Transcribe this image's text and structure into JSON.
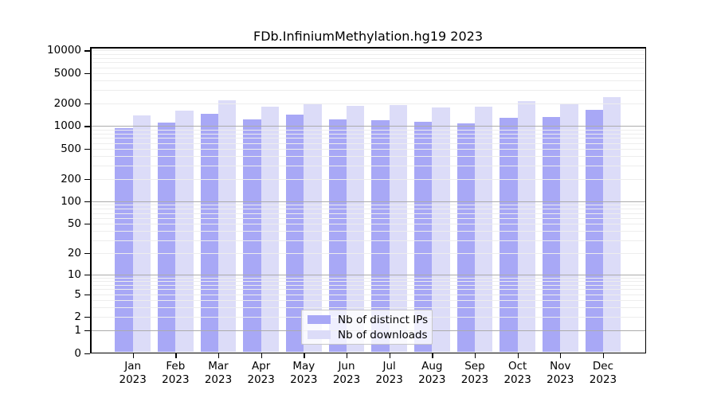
{
  "title": "FDb.InfiniumMethylation.hg19 2023",
  "colors": {
    "bar_dark": "#a8a8f6",
    "bar_light": "#dcdcf8",
    "grid_major": "#ababab",
    "grid_minor": "#ededed",
    "axis": "#000000",
    "legend_border": "#c8c8c8"
  },
  "chart_data": {
    "type": "bar",
    "title": "FDb.InfiniumMethylation.hg19 2023",
    "xlabel": "",
    "ylabel": "",
    "yscale": "log1p",
    "ylim": [
      0,
      11000
    ],
    "grid": true,
    "legend_position": "inside-bottom-center",
    "y_ticks": [
      0,
      1,
      2,
      5,
      10,
      20,
      50,
      100,
      200,
      500,
      1000,
      2000,
      5000,
      10000
    ],
    "categories": [
      "Jan 2023",
      "Feb 2023",
      "Mar 2023",
      "Apr 2023",
      "May 2023",
      "Jun 2023",
      "Jul 2023",
      "Aug 2023",
      "Sep 2023",
      "Oct 2023",
      "Nov 2023",
      "Dec 2023"
    ],
    "series": [
      {
        "name": "Nb of distinct IPs",
        "color": "#a8a8f6",
        "values": [
          940,
          1110,
          1440,
          1240,
          1420,
          1240,
          1200,
          1150,
          1080,
          1280,
          1320,
          1650
        ]
      },
      {
        "name": "Nb of downloads",
        "color": "#dcdcf8",
        "values": [
          1400,
          1620,
          2210,
          1820,
          2000,
          1860,
          1880,
          1760,
          1800,
          2160,
          1960,
          2450
        ]
      }
    ]
  }
}
